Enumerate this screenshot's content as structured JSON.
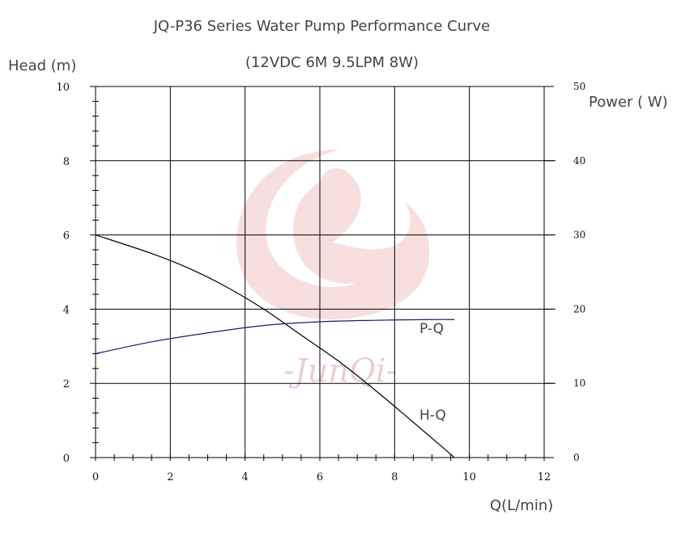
{
  "title": "JQ-P36 Series Water Pump Performance Curve",
  "subtitle": "(12VDC 6M 9.5LPM 8W)",
  "watermark": {
    "text": "-JunQi-",
    "color": "#f2c4c4"
  },
  "colors": {
    "grid": "#000000",
    "hq_curve": "#000000",
    "pq_curve": "#1a1a6e"
  },
  "chart_data": {
    "type": "line",
    "title": "JQ-P36 Series Water Pump Performance Curve",
    "subtitle": "(12VDC 6M 9.5LPM 8W)",
    "xlabel": "Q(L/min)",
    "ylabel": "Head (m)",
    "ylabel_right": "Power ( W)",
    "xlim": [
      0,
      12
    ],
    "ylim": [
      0,
      10
    ],
    "ylim_right": [
      0,
      50
    ],
    "x_ticks": [
      0,
      2,
      4,
      6,
      8,
      10,
      12
    ],
    "y_ticks": [
      0,
      2,
      4,
      6,
      8,
      10
    ],
    "y_ticks_right": [
      0,
      10,
      20,
      30,
      40,
      50
    ],
    "grid": true,
    "series": [
      {
        "name": "H-Q",
        "axis": "left",
        "x": [
          0,
          1.5,
          2.5,
          3.5,
          4.5,
          5.5,
          6.5,
          7.5,
          8.5,
          9.2,
          9.6
        ],
        "y": [
          6.0,
          5.5,
          5.1,
          4.6,
          4.0,
          3.3,
          2.6,
          1.8,
          0.95,
          0.35,
          0.0
        ]
      },
      {
        "name": "P-Q",
        "axis": "right",
        "x": [
          0,
          1.5,
          3,
          4.5,
          6,
          7.5,
          9,
          9.6
        ],
        "y": [
          14.0,
          15.6,
          16.8,
          17.8,
          18.3,
          18.5,
          18.6,
          18.6
        ]
      }
    ]
  }
}
